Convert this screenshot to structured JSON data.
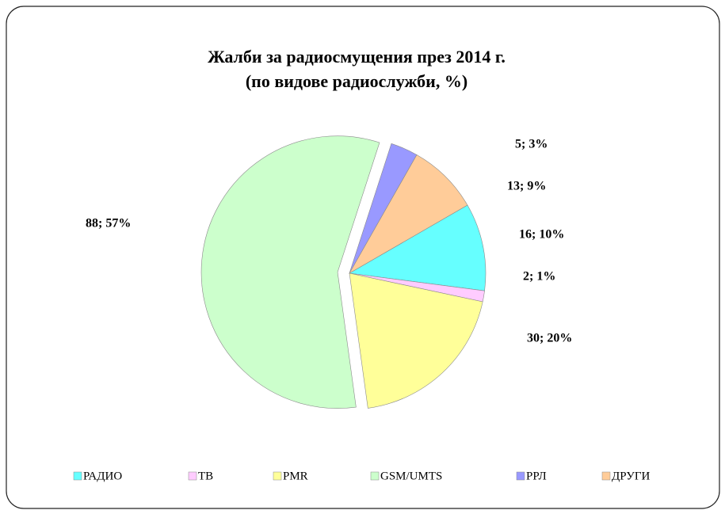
{
  "chart_data": {
    "type": "pie",
    "title": "Жалби за радиосмущения през 2014 г.",
    "subtitle": "(по видове радиослужби, %)",
    "categories": [
      "РАДИО",
      "ТВ",
      "PMR",
      "GSM/UMTS",
      "РРЛ",
      "ДРУГИ"
    ],
    "values": [
      16,
      2,
      30,
      88,
      5,
      13
    ],
    "value_labels": [
      "16; 10%",
      "2; 1%",
      "30; 20%",
      "88; 57%",
      "5; 3%",
      "13; 9%"
    ],
    "colors": [
      "#66ffff",
      "#ffccff",
      "#ffff99",
      "#ccffcc",
      "#9999ff",
      "#ffcc99"
    ],
    "exploded": "GSM/UMTS",
    "legend": "bottom"
  }
}
